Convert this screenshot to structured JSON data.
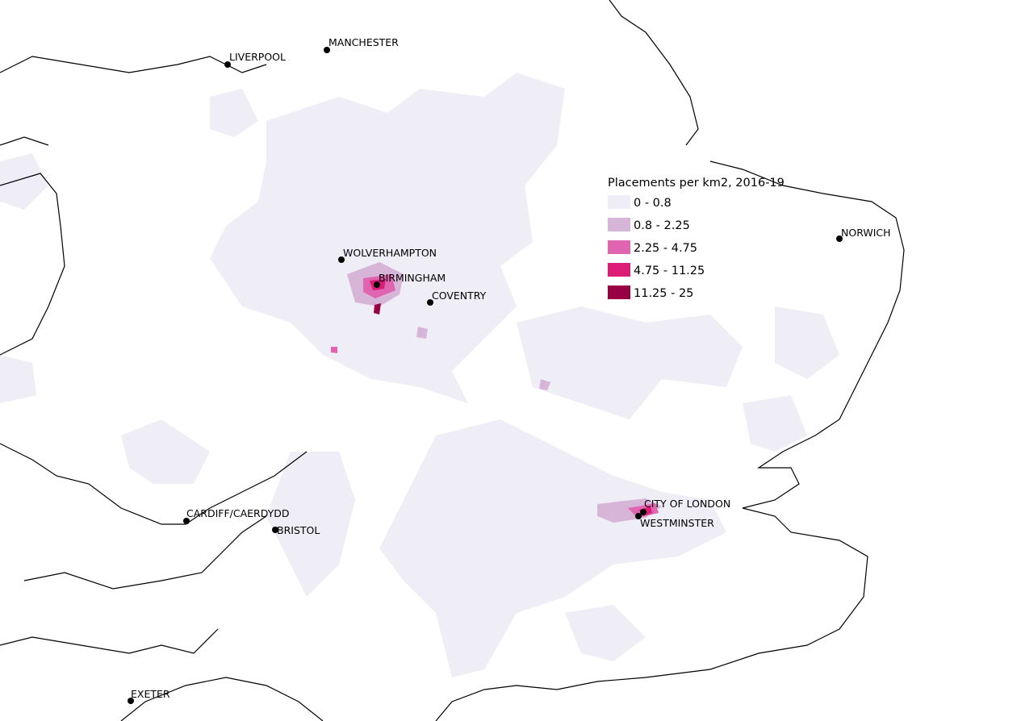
{
  "legend": {
    "title": "Placements per km2, 2016-19",
    "items": [
      {
        "label": "0 - 0.8",
        "color": "#efedf5"
      },
      {
        "label": "0.8 - 2.25",
        "color": "#d7b5d8"
      },
      {
        "label": "2.25 - 4.75",
        "color": "#df65b0"
      },
      {
        "label": "4.75 - 11.25",
        "color": "#dd1c77"
      },
      {
        "label": "11.25 - 25",
        "color": "#980043"
      }
    ]
  },
  "cities": [
    {
      "label": "MANCHESTER"
    },
    {
      "label": "LIVERPOOL"
    },
    {
      "label": "WOLVERHAMPTON"
    },
    {
      "label": "BIRMINGHAM"
    },
    {
      "label": "COVENTRY"
    },
    {
      "label": "NORWICH"
    },
    {
      "label": "CITY OF LONDON"
    },
    {
      "label": "WESTMINSTER"
    },
    {
      "label": "CARDIFF/CAERDYDD"
    },
    {
      "label": "BRISTOL"
    },
    {
      "label": "EXETER"
    }
  ]
}
